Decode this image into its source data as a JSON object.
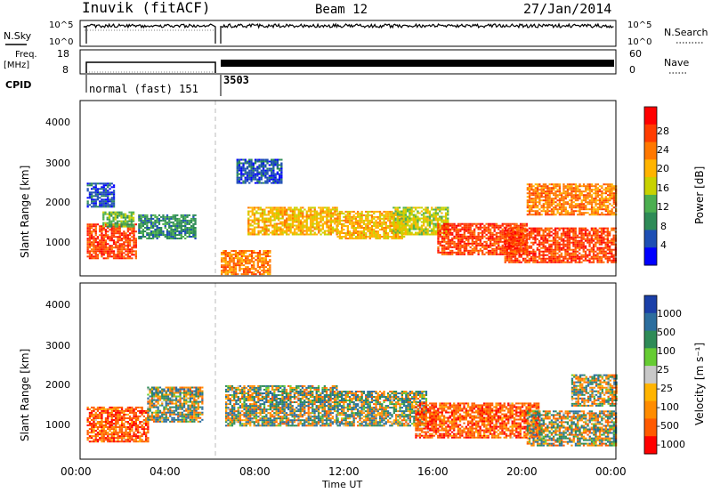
{
  "header": {
    "station": "Inuvik (fitACF)",
    "beam": "Beam 12",
    "date": "27/Jan/2014"
  },
  "noise_panel": {
    "left_label": "N.Sky",
    "right_label": "N.Search",
    "tick_top": "10^5",
    "tick_bottom": "10^0",
    "right_tick_top": "10^5",
    "right_tick_bottom": "10^0"
  },
  "freq_panel": {
    "left_label_line1": "Freq.",
    "left_label_line2": "[MHz]",
    "left_tick_top": "18",
    "left_tick_bottom": "8",
    "right_label": "Nave",
    "right_tick_top": "60",
    "right_tick_bottom": "0"
  },
  "cpid": {
    "label": "CPID",
    "mode1": "normal (fast) 151",
    "mode2": "3503"
  },
  "power_panel": {
    "ylabel": "Slant Range [km]",
    "yticks": [
      "4000",
      "3000",
      "2000",
      "1000"
    ],
    "colorbar_label": "Power [dB]",
    "colorbar_ticks": [
      "28",
      "24",
      "20",
      "16",
      "12",
      "8",
      "4"
    ],
    "colorbar_colors": [
      "#ff0000",
      "#ff3c00",
      "#ff7800",
      "#ffb400",
      "#c8d200",
      "#4caf50",
      "#2e8b57",
      "#1e4fb4",
      "#0000ff"
    ]
  },
  "velocity_panel": {
    "ylabel": "Slant Range [km]",
    "yticks": [
      "4000",
      "3000",
      "2000",
      "1000"
    ],
    "colorbar_label": "Velocity [m s⁻¹]",
    "colorbar_ticks": [
      "1000",
      "500",
      "100",
      "25",
      "-25",
      "-100",
      "-500",
      "-1000"
    ],
    "colorbar_colors": [
      "#1a3fa8",
      "#2c6e9e",
      "#2e8b57",
      "#66cc33",
      "#c8c8c8",
      "#ffb400",
      "#ff8c00",
      "#ff5a00",
      "#ff0000"
    ]
  },
  "time_axis": {
    "ticks": [
      "00:00",
      "04:00",
      "08:00",
      "12:00",
      "16:00",
      "20:00",
      "00:00"
    ],
    "label": "Time UT"
  },
  "chart_data": {
    "type": "heatmap",
    "x_range_hours": [
      0,
      24
    ],
    "y_range_km": [
      180,
      4600
    ],
    "data_gap_hours": [
      5.85,
      6.2
    ],
    "power_blobs": [
      {
        "t": [
          0.3,
          2.5
        ],
        "r": [
          600,
          1500
        ],
        "value_db": 28
      },
      {
        "t": [
          1.0,
          2.4
        ],
        "r": [
          1400,
          1800
        ],
        "value_db": 12
      },
      {
        "t": [
          2.6,
          5.2
        ],
        "r": [
          1100,
          1700
        ],
        "value_db": 8
      },
      {
        "t": [
          7.5,
          11.5
        ],
        "r": [
          1200,
          1900
        ],
        "value_db": 20
      },
      {
        "t": [
          11.5,
          14.5
        ],
        "r": [
          1100,
          1800
        ],
        "value_db": 20
      },
      {
        "t": [
          14.0,
          16.5
        ],
        "r": [
          1200,
          1900
        ],
        "value_db": 16
      },
      {
        "t": [
          16.0,
          20.0
        ],
        "r": [
          700,
          1500
        ],
        "value_db": 28
      },
      {
        "t": [
          19.0,
          24.0
        ],
        "r": [
          500,
          1400
        ],
        "value_db": 28
      },
      {
        "t": [
          6.3,
          8.5
        ],
        "r": [
          200,
          800
        ],
        "value_db": 24
      },
      {
        "t": [
          0.3,
          1.5
        ],
        "r": [
          1900,
          2500
        ],
        "value_db": 4
      },
      {
        "t": [
          7.0,
          9.0
        ],
        "r": [
          2500,
          3100
        ],
        "value_db": 4
      },
      {
        "t": [
          20.0,
          24.0
        ],
        "r": [
          1700,
          2500
        ],
        "value_db": 24
      }
    ],
    "velocity_blobs": [
      {
        "t": [
          0.3,
          3.0
        ],
        "r": [
          600,
          1500
        ],
        "value_ms": -500
      },
      {
        "t": [
          3.0,
          5.5
        ],
        "r": [
          1100,
          2000
        ],
        "value_ms": 100
      },
      {
        "t": [
          6.5,
          11.5
        ],
        "r": [
          1000,
          2000
        ],
        "value_ms": 100
      },
      {
        "t": [
          11.5,
          15.5
        ],
        "r": [
          1000,
          1900
        ],
        "value_ms": 100
      },
      {
        "t": [
          15.0,
          20.5
        ],
        "r": [
          700,
          1600
        ],
        "value_ms": -500
      },
      {
        "t": [
          20.0,
          24.0
        ],
        "r": [
          500,
          1400
        ],
        "value_ms": 25
      },
      {
        "t": [
          22.0,
          24.0
        ],
        "r": [
          1500,
          2300
        ],
        "value_ms": 0
      }
    ]
  }
}
